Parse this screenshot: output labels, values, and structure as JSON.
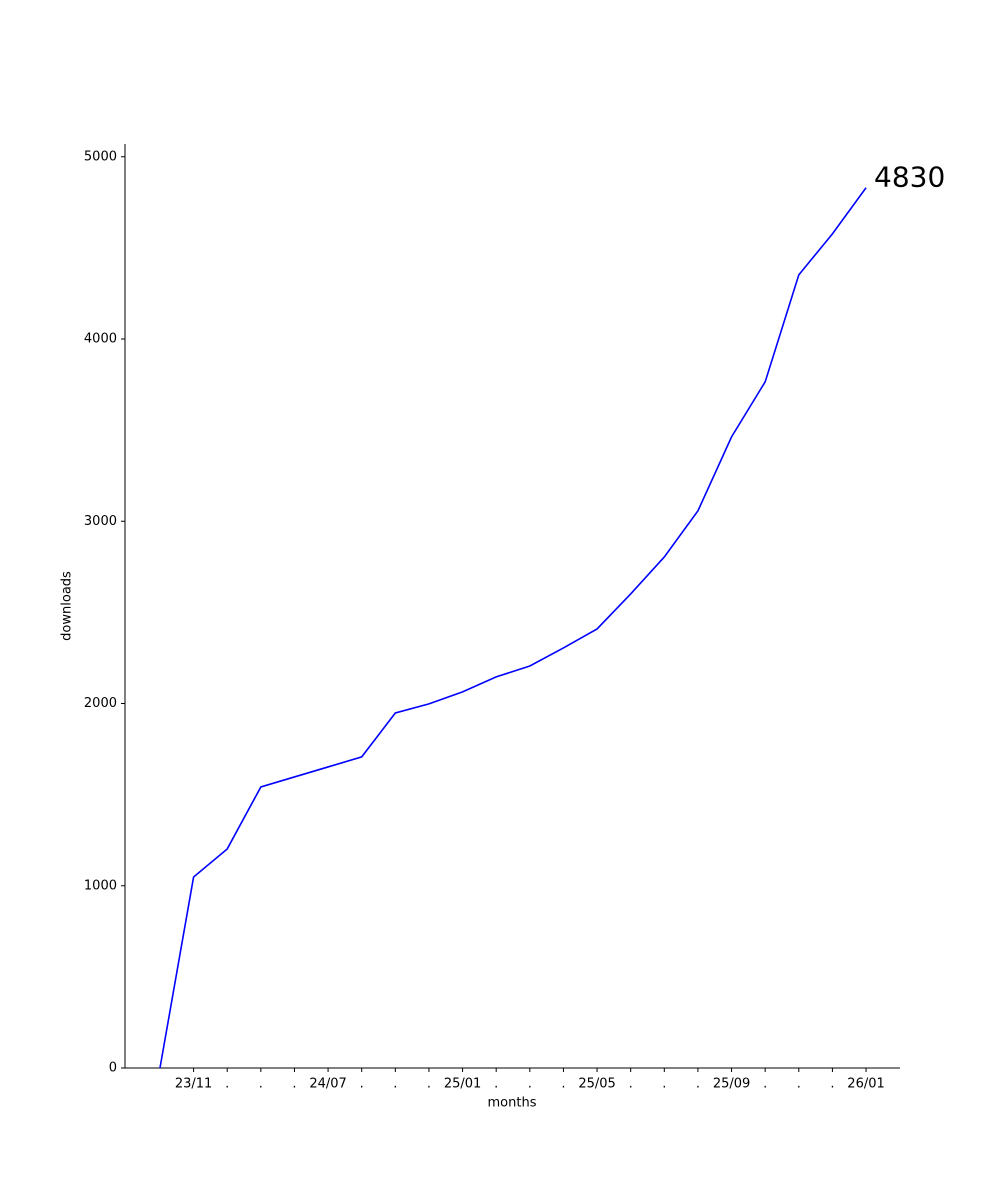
{
  "chart_data": {
    "type": "line",
    "x_label": "months",
    "y_label": "downloads",
    "categories": [
      null,
      "23/11",
      ".",
      ".",
      ".",
      "24/07",
      ".",
      ".",
      ".",
      "25/01",
      ".",
      ".",
      ".",
      "25/05",
      ".",
      ".",
      ".",
      "25/09",
      ".",
      ".",
      ".",
      "26/01"
    ],
    "series": [
      {
        "color": "#0000ff",
        "values": [
          0,
          1048,
          1202,
          1542,
          1597,
          1652,
          1707,
          1948,
          1998,
          2064,
          2146,
          2206,
          2305,
          2409,
          2601,
          2804,
          3057,
          3463,
          3765,
          4352,
          4577,
          4830
        ]
      }
    ],
    "ylim": [
      0,
      5070
    ],
    "yticks": [
      0,
      1000,
      2000,
      3000,
      4000,
      5000
    ],
    "grid": false
  }
}
